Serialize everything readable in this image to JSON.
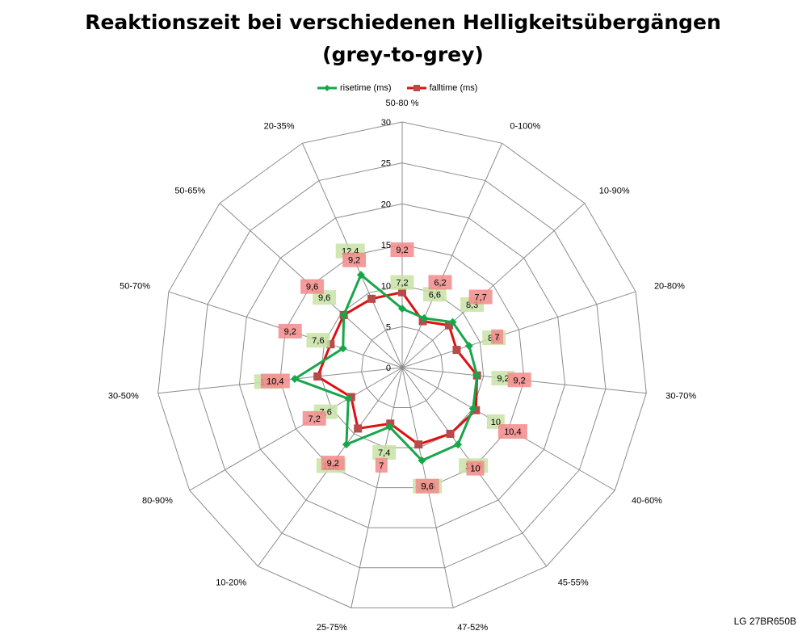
{
  "header": {
    "title_line1": "Reaktionszeit bei verschiedenen Helligkeitsübergängen",
    "title_line2": "(grey-to-grey)"
  },
  "legend": {
    "rise_label": "risetime (ms)",
    "fall_label": "falltime (ms)"
  },
  "footer": {
    "model": "LG 27BR650B"
  },
  "chart_data": {
    "type": "radar",
    "title": "Reaktionszeit bei verschiedenen Helligkeitsübergängen (grey-to-grey)",
    "categories": [
      "50-80 %",
      "0-100%",
      "10-90%",
      "20-80%",
      "30-70%",
      "40-60%",
      "45-55%",
      "47-52%",
      "25-75%",
      "10-20%",
      "80-90%",
      "30-50%",
      "50-70%",
      "50-65%",
      "20-35%"
    ],
    "series": [
      {
        "name": "risetime (ms)",
        "color": "#17a64a",
        "marker": "diamond",
        "values": [
          7.2,
          6.6,
          8.3,
          8.6,
          9.2,
          10,
          11.6,
          11.6,
          7.4,
          11.6,
          7.6,
          13.2,
          7.6,
          9.6,
          12.4
        ],
        "labels": [
          "7,2",
          "6,6",
          "8,3",
          "8,6",
          "9,2",
          "10",
          "11,6",
          "11,6",
          "7,4",
          "11,6",
          "7,6",
          "13,2",
          "7,6",
          "9,6",
          "12,4"
        ]
      },
      {
        "name": "falltime (ms)",
        "color": "#dd1111",
        "marker": "square",
        "values": [
          9.2,
          6.2,
          7.7,
          7,
          9.2,
          10.4,
          10,
          9.6,
          7,
          9.2,
          7.2,
          10.4,
          9.2,
          9.6,
          9.2
        ],
        "labels": [
          "9,2",
          "6,2",
          "7,7",
          "7",
          "9,2",
          "10,4",
          "10",
          "9,6",
          "7",
          "9,2",
          "7,2",
          "10,4",
          "9,2",
          "9,6",
          "9,2"
        ]
      }
    ],
    "rlim": [
      0,
      30
    ],
    "r_ticks": [
      0,
      5,
      10,
      15,
      20,
      25,
      30
    ],
    "grid": true,
    "legend_position": "top"
  }
}
